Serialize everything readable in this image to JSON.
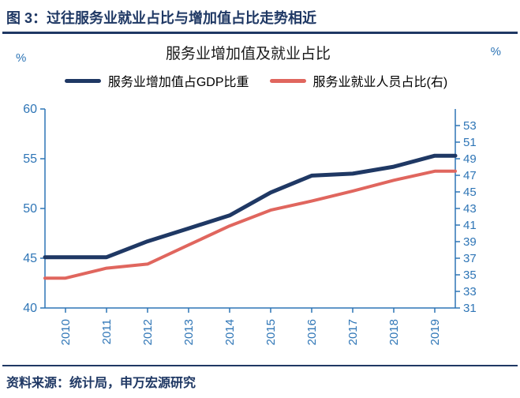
{
  "header": {
    "title": "图 3：过往服务业就业占比与增加值占比走势相近"
  },
  "chart_data": {
    "type": "line",
    "title": "服务业增加值及就业占比",
    "left_axis_unit": "%",
    "right_axis_unit": "%",
    "axis_color": "#2E75B6",
    "grid": false,
    "legend_position": "top",
    "categories": [
      "2010",
      "2011",
      "2012",
      "2013",
      "2014",
      "2015",
      "2016",
      "2017",
      "2018",
      "2019"
    ],
    "series": [
      {
        "name": "服务业增加值占GDP比重",
        "axis": "left",
        "color": "#1F3864",
        "values": [
          45.1,
          45.1,
          46.7,
          48.0,
          49.3,
          51.6,
          53.3,
          53.5,
          54.2,
          55.3
        ]
      },
      {
        "name": "服务业就业人员占比(右)",
        "axis": "right",
        "color": "#E0665E",
        "values": [
          34.6,
          35.8,
          36.3,
          38.6,
          40.9,
          42.8,
          43.9,
          45.1,
          46.4,
          47.5
        ]
      }
    ],
    "left_axis": {
      "min": 40,
      "max": 60,
      "ticks": [
        60,
        55,
        50,
        45,
        40
      ]
    },
    "right_axis": {
      "min": 31,
      "max": 55,
      "ticks": [
        53,
        51,
        49,
        47,
        45,
        43,
        41,
        39,
        37,
        35,
        33,
        31
      ]
    }
  },
  "footer": {
    "source": "资料来源：统计局，申万宏源研究"
  }
}
